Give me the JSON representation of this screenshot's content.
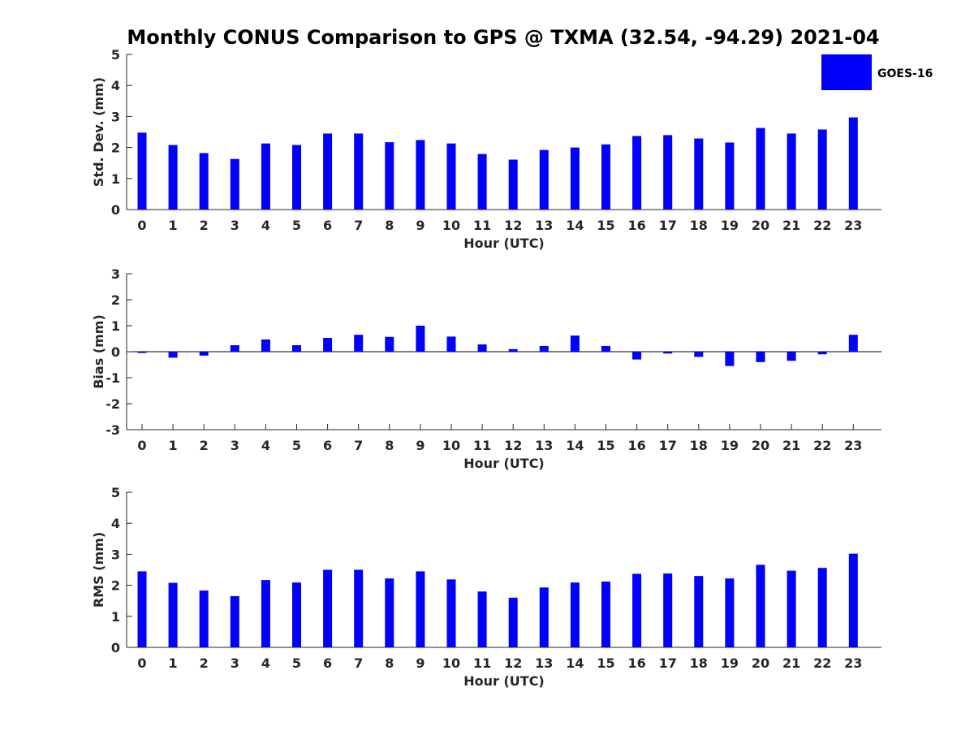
{
  "title": "Monthly CONUS Comparison to GPS @ TXMA (32.54, -94.29) 2021-04",
  "legend": {
    "label": "GOES-16",
    "color": "#0000ff",
    "position": "top-right"
  },
  "chart_data": [
    {
      "type": "bar",
      "ylabel": "Std. Dev. (mm)",
      "xlabel": "Hour (UTC)",
      "ylim": [
        0,
        5
      ],
      "yticks": [
        0,
        1,
        2,
        3,
        4,
        5
      ],
      "categories": [
        "0",
        "1",
        "2",
        "3",
        "4",
        "5",
        "6",
        "7",
        "8",
        "9",
        "10",
        "11",
        "12",
        "13",
        "14",
        "15",
        "16",
        "17",
        "18",
        "19",
        "20",
        "21",
        "22",
        "23"
      ],
      "series": [
        {
          "name": "GOES-16",
          "color": "#0000ff",
          "values": [
            2.48,
            2.08,
            1.82,
            1.63,
            2.13,
            2.08,
            2.45,
            2.45,
            2.17,
            2.24,
            2.13,
            1.79,
            1.61,
            1.92,
            2.0,
            2.1,
            2.37,
            2.4,
            2.29,
            2.16,
            2.63,
            2.45,
            2.58,
            2.97
          ]
        }
      ],
      "grid": false
    },
    {
      "type": "bar",
      "ylabel": "Bias (mm)",
      "xlabel": "Hour (UTC)",
      "ylim": [
        -3,
        3
      ],
      "yticks": [
        -3,
        -2,
        -1,
        0,
        1,
        2,
        3
      ],
      "categories": [
        "0",
        "1",
        "2",
        "3",
        "4",
        "5",
        "6",
        "7",
        "8",
        "9",
        "10",
        "11",
        "12",
        "13",
        "14",
        "15",
        "16",
        "17",
        "18",
        "19",
        "20",
        "21",
        "22",
        "23"
      ],
      "series": [
        {
          "name": "GOES-16",
          "color": "#0000ff",
          "values": [
            -0.05,
            -0.23,
            -0.15,
            0.25,
            0.47,
            0.25,
            0.53,
            0.65,
            0.57,
            1.0,
            0.58,
            0.28,
            0.1,
            0.22,
            0.62,
            0.22,
            -0.3,
            -0.07,
            -0.2,
            -0.55,
            -0.4,
            -0.35,
            -0.1,
            0.65
          ]
        }
      ],
      "grid": false
    },
    {
      "type": "bar",
      "ylabel": "RMS (mm)",
      "xlabel": "Hour (UTC)",
      "ylim": [
        0,
        5
      ],
      "yticks": [
        0,
        1,
        2,
        3,
        4,
        5
      ],
      "categories": [
        "0",
        "1",
        "2",
        "3",
        "4",
        "5",
        "6",
        "7",
        "8",
        "9",
        "10",
        "11",
        "12",
        "13",
        "14",
        "15",
        "16",
        "17",
        "18",
        "19",
        "20",
        "21",
        "22",
        "23"
      ],
      "series": [
        {
          "name": "GOES-16",
          "color": "#0000ff",
          "values": [
            2.45,
            2.08,
            1.83,
            1.65,
            2.17,
            2.09,
            2.5,
            2.5,
            2.22,
            2.45,
            2.19,
            1.8,
            1.6,
            1.93,
            2.09,
            2.12,
            2.37,
            2.38,
            2.3,
            2.22,
            2.66,
            2.47,
            2.56,
            3.02
          ]
        }
      ],
      "grid": false
    }
  ]
}
